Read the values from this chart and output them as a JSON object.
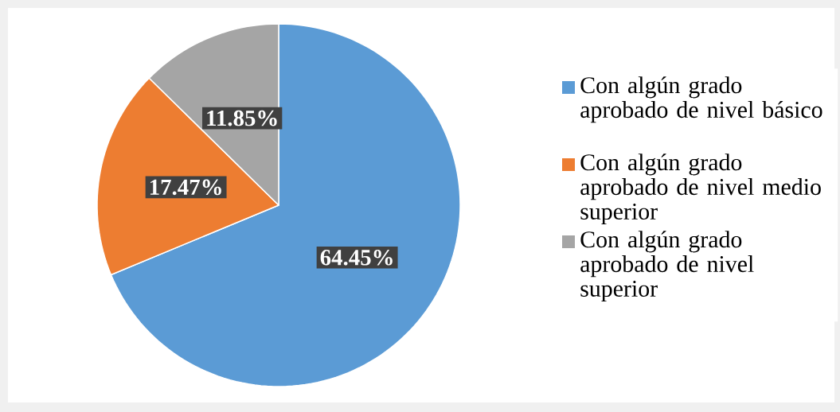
{
  "chart_data": {
    "type": "pie",
    "categories": [
      "Con algún grado aprobado de nivel básico",
      "Con algún grado aprobado de nivel medio superior",
      "Con algún grado aprobado de nivel superior"
    ],
    "values": [
      64.45,
      17.47,
      11.85
    ],
    "colors": [
      "#5b9bd5",
      "#ed7d31",
      "#a5a5a5"
    ],
    "value_labels": [
      "64.45%",
      "17.47%",
      "11.85%"
    ],
    "legend": "right"
  }
}
